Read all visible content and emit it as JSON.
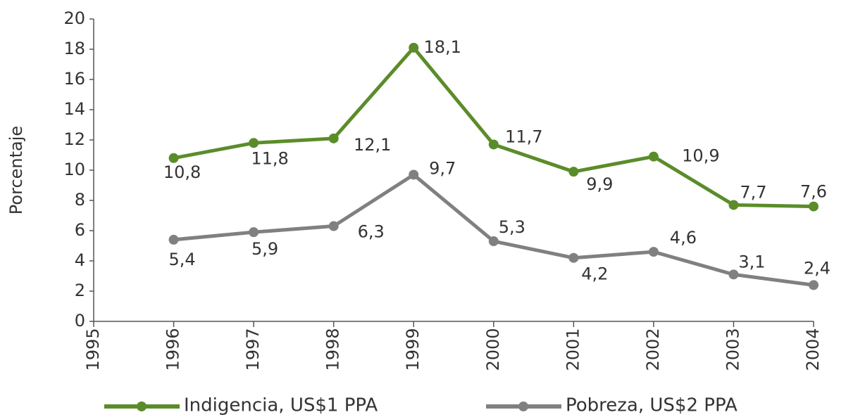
{
  "chart_data": {
    "type": "line",
    "y_label": "Porcentaje",
    "x": [
      1996,
      1997,
      1998,
      1999,
      2000,
      2001,
      2002,
      2003,
      2004
    ],
    "xlim": [
      1995,
      2004
    ],
    "xticks": [
      1995,
      1996,
      1997,
      1998,
      1999,
      2000,
      2001,
      2002,
      2003,
      2004
    ],
    "ylim": [
      0,
      20
    ],
    "yticks": [
      0,
      2,
      4,
      6,
      8,
      10,
      12,
      14,
      16,
      18,
      20
    ],
    "grid": false,
    "legend": "bottom",
    "series": [
      {
        "name": "Indigencia, US$1 PPA",
        "color": "#5b8c2a",
        "values": [
          10.8,
          11.8,
          12.1,
          18.1,
          11.7,
          9.9,
          10.9,
          7.7,
          7.6
        ],
        "value_labels": [
          "10,8",
          "11,8",
          "12,1",
          "18,1",
          "11,7",
          "9,9",
          "10,9",
          "7,7",
          "7,6"
        ]
      },
      {
        "name": "Pobreza, US$2 PPA",
        "color": "#808080",
        "values": [
          5.4,
          5.9,
          6.3,
          9.7,
          5.3,
          4.2,
          4.6,
          3.1,
          2.4
        ],
        "value_labels": [
          "5,4",
          "5,9",
          "6,3",
          "9,7",
          "5,3",
          "4,2",
          "4,6",
          "3,1",
          "2,4"
        ]
      }
    ]
  }
}
